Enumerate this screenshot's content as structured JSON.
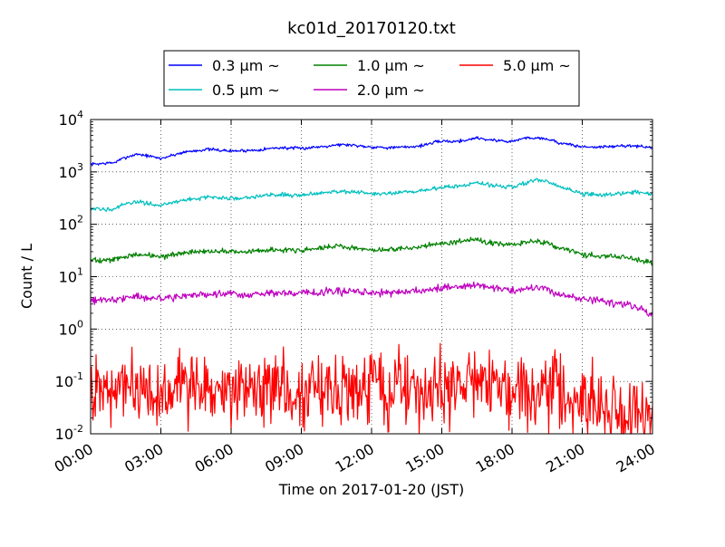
{
  "chart_data": {
    "type": "line",
    "title": "kc01d_20170120.txt",
    "xlabel": "Time on 2017-01-20 (JST)",
    "ylabel": "Count / L",
    "x_unit": "hours",
    "xlim": [
      0,
      24
    ],
    "x_ticks": [
      "00:00",
      "03:00",
      "06:00",
      "09:00",
      "12:00",
      "15:00",
      "18:00",
      "21:00",
      "24:00"
    ],
    "y_scale": "log",
    "ylim": [
      0.01,
      10000
    ],
    "y_ticks": [
      {
        "value": 0.01,
        "base": "10",
        "exp": "-2"
      },
      {
        "value": 0.1,
        "base": "10",
        "exp": "-1"
      },
      {
        "value": 1,
        "base": "10",
        "exp": "0"
      },
      {
        "value": 10,
        "base": "10",
        "exp": "1"
      },
      {
        "value": 100,
        "base": "10",
        "exp": "2"
      },
      {
        "value": 1000,
        "base": "10",
        "exp": "3"
      },
      {
        "value": 10000,
        "base": "10",
        "exp": "4"
      }
    ],
    "grid": true,
    "legend_position": "top-center",
    "series": [
      {
        "name": "0.3 μm ~",
        "color": "#0000ff",
        "noise": 0.015,
        "x": [
          0,
          1,
          1.5,
          2,
          2.5,
          3,
          4,
          5,
          6,
          7,
          8,
          9,
          10,
          10.5,
          11,
          12,
          13,
          14,
          15,
          15.5,
          16,
          16.5,
          17,
          18,
          18.5,
          19,
          19.5,
          20,
          21,
          22,
          23,
          24
        ],
        "y": [
          1400,
          1500,
          1900,
          2200,
          2000,
          1800,
          2400,
          2700,
          2500,
          2600,
          2900,
          2800,
          3100,
          3300,
          3300,
          3000,
          2900,
          3100,
          3900,
          3800,
          4000,
          4500,
          4100,
          3800,
          4400,
          4500,
          4300,
          3600,
          3000,
          3000,
          3200,
          2900
        ]
      },
      {
        "name": "0.5 μm ~",
        "color": "#00bfbf",
        "noise": 0.02,
        "x": [
          0,
          1,
          1.5,
          2,
          2.5,
          3,
          4,
          5,
          6,
          7,
          8,
          9,
          10,
          10.5,
          11,
          12,
          13,
          14,
          15,
          15.5,
          16,
          16.5,
          17,
          18,
          18.5,
          19,
          19.5,
          20,
          21,
          22,
          23,
          24
        ],
        "y": [
          190,
          200,
          240,
          270,
          250,
          230,
          290,
          330,
          310,
          340,
          370,
          360,
          410,
          430,
          420,
          380,
          390,
          430,
          510,
          520,
          560,
          620,
          560,
          520,
          610,
          690,
          650,
          530,
          380,
          360,
          410,
          390
        ]
      },
      {
        "name": "1.0 μm ~",
        "color": "#008000",
        "noise": 0.025,
        "x": [
          0,
          1,
          1.5,
          2,
          2.5,
          3,
          4,
          5,
          6,
          7,
          8,
          9,
          10,
          10.5,
          11,
          12,
          13,
          14,
          15,
          15.5,
          16,
          16.5,
          17,
          18,
          18.5,
          19,
          19.5,
          20,
          21,
          22,
          23,
          24
        ],
        "y": [
          20,
          21,
          24,
          27,
          26,
          24,
          28,
          31,
          30,
          31,
          33,
          32,
          36,
          38,
          36,
          32,
          33,
          37,
          43,
          46,
          48,
          52,
          44,
          40,
          44,
          48,
          45,
          36,
          27,
          25,
          23,
          18
        ]
      },
      {
        "name": "2.0 μm ~",
        "color": "#bf00bf",
        "noise": 0.035,
        "x": [
          0,
          1,
          1.5,
          2,
          2.5,
          3,
          4,
          5,
          6,
          7,
          8,
          9,
          10,
          10.5,
          11,
          12,
          13,
          14,
          15,
          15.5,
          16,
          16.5,
          17,
          18,
          18.5,
          19,
          19.5,
          20,
          21,
          22,
          23,
          23.5,
          24
        ],
        "y": [
          3.6,
          3.7,
          4.0,
          4.2,
          4.0,
          3.9,
          4.2,
          4.6,
          4.5,
          4.6,
          4.9,
          4.8,
          5.2,
          5.3,
          5.1,
          4.9,
          5.0,
          5.4,
          6.0,
          6.5,
          6.8,
          7.0,
          6.4,
          5.3,
          5.8,
          6.1,
          5.7,
          4.6,
          3.8,
          3.3,
          2.9,
          2.4,
          1.8
        ]
      },
      {
        "name": "5.0 μm ~",
        "color": "#ff0000",
        "noise": 0.35,
        "x": [
          0,
          2,
          3,
          4,
          5,
          6,
          7,
          8,
          9,
          10,
          11,
          12,
          13,
          14,
          15,
          16,
          17,
          18,
          19,
          20,
          21,
          22,
          23,
          24
        ],
        "y": [
          0.07,
          0.07,
          0.075,
          0.08,
          0.075,
          0.07,
          0.075,
          0.08,
          0.07,
          0.07,
          0.075,
          0.08,
          0.075,
          0.07,
          0.08,
          0.1,
          0.11,
          0.06,
          0.065,
          0.06,
          0.05,
          0.035,
          0.025,
          0.02
        ]
      }
    ]
  }
}
